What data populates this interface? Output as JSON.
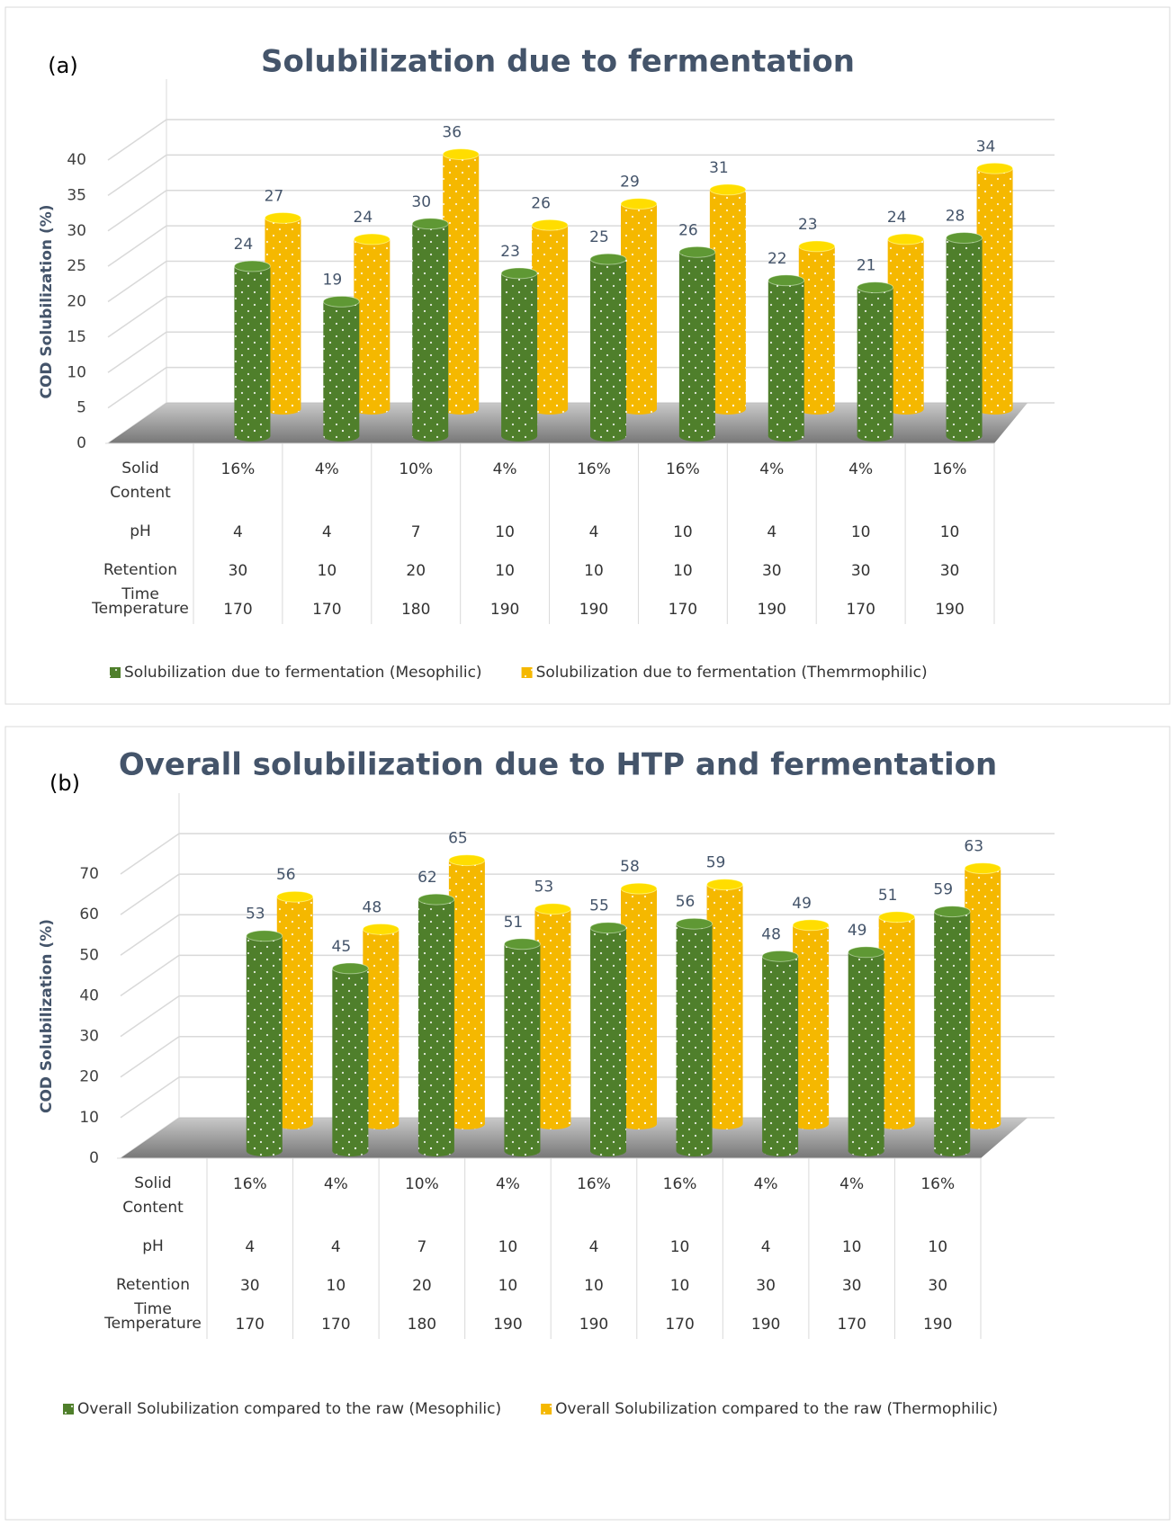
{
  "chart_data": [
    {
      "type": "bar3d",
      "panel": "(a)",
      "title": "Solubilization due to fermentation",
      "y_label": "COD Solubilization (%)",
      "ylim": [
        0,
        40
      ],
      "yticks": [
        0,
        5,
        10,
        15,
        20,
        25,
        30,
        35,
        40
      ],
      "grid": true,
      "series": [
        {
          "name": "Solubilization due to fermentation (Mesophilic)",
          "color": "#4f7f2b",
          "values": [
            24,
            19,
            30,
            23,
            25,
            26,
            22,
            21,
            28
          ]
        },
        {
          "name": "Solubilization due to fermentation (Themrmophilic)",
          "color": "#f5b800",
          "values": [
            27,
            24,
            36,
            26,
            29,
            31,
            23,
            24,
            34
          ]
        }
      ],
      "table": {
        "rows": [
          {
            "label": "Solid Content",
            "cells": [
              "16%",
              "4%",
              "10%",
              "4%",
              "16%",
              "16%",
              "4%",
              "4%",
              "16%"
            ]
          },
          {
            "label": "pH",
            "cells": [
              4,
              4,
              7,
              10,
              4,
              10,
              4,
              10,
              10
            ]
          },
          {
            "label": "Retention Time",
            "cells": [
              30,
              10,
              20,
              10,
              10,
              10,
              30,
              30,
              30
            ]
          },
          {
            "label": "Temperature",
            "cells": [
              170,
              170,
              180,
              190,
              190,
              170,
              190,
              170,
              190
            ]
          }
        ]
      }
    },
    {
      "type": "bar3d",
      "panel": "(b)",
      "title": "Overall solubilization due to HTP and fermentation",
      "y_label": "COD Solubilization (%)",
      "ylim": [
        0,
        70
      ],
      "yticks": [
        0,
        10,
        20,
        30,
        40,
        50,
        60,
        70
      ],
      "grid": true,
      "series": [
        {
          "name": "Overall Solubilization compared to the raw (Mesophilic)",
          "color": "#4f7f2b",
          "values": [
            53,
            45,
            62,
            51,
            55,
            56,
            48,
            49,
            59
          ]
        },
        {
          "name": "Overall Solubilization compared to the raw (Thermophilic)",
          "color": "#f5b800",
          "values": [
            56,
            48,
            65,
            53,
            58,
            59,
            49,
            51,
            63
          ]
        }
      ],
      "table": {
        "rows": [
          {
            "label": "Solid Content",
            "cells": [
              "16%",
              "4%",
              "10%",
              "4%",
              "16%",
              "16%",
              "4%",
              "4%",
              "16%"
            ]
          },
          {
            "label": "pH",
            "cells": [
              4,
              4,
              7,
              10,
              4,
              10,
              4,
              10,
              10
            ]
          },
          {
            "label": "Retention Time",
            "cells": [
              30,
              10,
              20,
              10,
              10,
              10,
              30,
              30,
              30
            ]
          },
          {
            "label": "Temperature",
            "cells": [
              170,
              170,
              180,
              190,
              190,
              170,
              190,
              170,
              190
            ]
          }
        ]
      }
    }
  ]
}
